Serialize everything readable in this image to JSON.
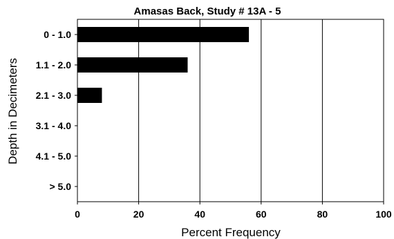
{
  "chart_data": {
    "type": "bar",
    "orientation": "horizontal",
    "title": "Amasas Back, Study # 13A - 5",
    "xlabel": "Percent Frequency",
    "ylabel": "Depth in Decimeters",
    "categories": [
      "0 - 1.0",
      "1.1 - 2.0",
      "2.1 - 3.0",
      "3.1 - 4.0",
      "4.1 - 5.0",
      "> 5.0"
    ],
    "values": [
      56,
      36,
      8,
      0,
      0,
      0
    ],
    "xlim": [
      0,
      100
    ],
    "xticks": [
      0,
      20,
      40,
      60,
      80,
      100
    ],
    "grid": "vertical",
    "bar_color": "#000000",
    "legend": "none"
  }
}
